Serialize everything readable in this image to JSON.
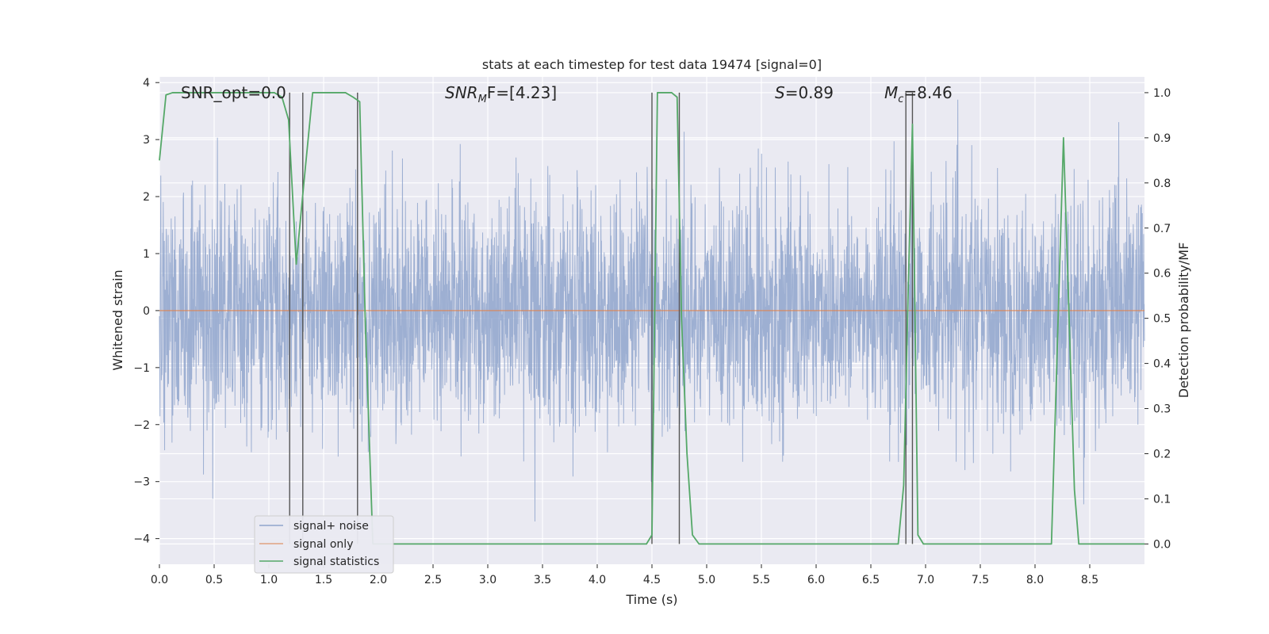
{
  "chart_data": {
    "type": "line",
    "title": "stats at each timestep for test data 19474 [signal=0]",
    "xlabel": "Time (s)",
    "ylabel": "Whitened strain",
    "y2label": "Detection probability/MF",
    "xlim": [
      0,
      9
    ],
    "ylim": [
      -4.45,
      4.1
    ],
    "y2lim": [
      -0.045,
      1.035
    ],
    "xticks": [
      "0.0",
      "0.5",
      "1.0",
      "1.5",
      "2.0",
      "2.5",
      "3.0",
      "3.5",
      "4.0",
      "4.5",
      "5.0",
      "5.5",
      "6.0",
      "6.5",
      "7.0",
      "7.5",
      "8.0",
      "8.5"
    ],
    "yticks": [
      "4",
      "3",
      "2",
      "1",
      "0",
      "−1",
      "−2",
      "−3",
      "−4"
    ],
    "y2ticks": [
      "1.0",
      "0.9",
      "0.8",
      "0.7",
      "0.6",
      "0.5",
      "0.4",
      "0.3",
      "0.2",
      "0.1",
      "0.0"
    ],
    "grid": true,
    "legend_position": "lower-left",
    "annotations": {
      "snr_opt": "SNR_opt=0.0",
      "snr_mf_main": "SNR",
      "snr_mf_sub": "M",
      "snr_mf_rest": "F=[4.23]",
      "s_main": "S",
      "s_rest": "=0.89",
      "mc_main": "M",
      "mc_sub": "c",
      "mc_rest": "=8.46"
    },
    "series": [
      {
        "name": "signal+ noise",
        "color": "#8fa5cc",
        "kind": "noise",
        "description_values": "gaussian whitened noise, 0 to 9 s, mostly within ±2.5, extremes to ±3.7"
      },
      {
        "name": "signal only",
        "color": "#dd8452",
        "x": [
          0,
          9
        ],
        "y": [
          0,
          0
        ]
      },
      {
        "name": "signal statistics",
        "color": "#55a868",
        "axis": "right",
        "x": [
          0.0,
          0.06,
          0.12,
          0.3,
          0.6,
          0.9,
          1.05,
          1.12,
          1.18,
          1.25,
          1.32,
          1.4,
          1.55,
          1.7,
          1.77,
          1.83,
          1.88,
          1.95,
          2.1,
          2.5,
          3.0,
          3.5,
          4.0,
          4.45,
          4.5,
          4.55,
          4.62,
          4.68,
          4.73,
          4.77,
          4.82,
          4.87,
          4.93,
          5.2,
          5.6,
          6.0,
          6.4,
          6.75,
          6.8,
          6.84,
          6.88,
          6.93,
          6.98,
          7.3,
          7.7,
          8.1,
          8.15,
          8.26,
          8.36,
          8.4,
          8.6,
          8.9,
          9.0
        ],
        "y": [
          0.85,
          0.995,
          1.0,
          1.0,
          1.0,
          1.0,
          1.0,
          0.99,
          0.94,
          0.62,
          0.8,
          1.0,
          1.0,
          1.0,
          0.99,
          0.98,
          0.5,
          0.0,
          0.0,
          0.0,
          0.0,
          0.0,
          0.0,
          0.0,
          0.02,
          1.0,
          1.0,
          1.0,
          0.99,
          0.5,
          0.2,
          0.02,
          0.0,
          0.0,
          0.0,
          0.0,
          0.0,
          0.0,
          0.13,
          0.55,
          0.93,
          0.02,
          0.0,
          0.0,
          0.0,
          0.0,
          0.0,
          0.9,
          0.12,
          0.0,
          0.0,
          0.0,
          0.0
        ]
      }
    ],
    "vertical_markers": [
      1.19,
      1.31,
      1.81,
      4.5,
      4.75,
      6.82,
      6.88
    ]
  }
}
